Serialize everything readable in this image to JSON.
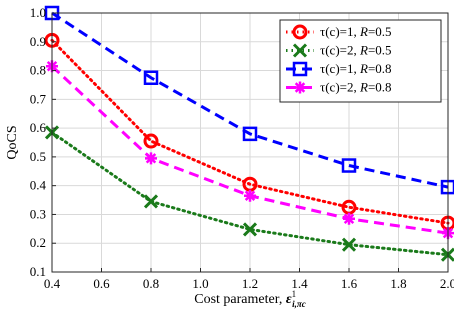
{
  "chart_data": {
    "type": "line",
    "xlabel": "Cost parameter, ",
    "xlabel_symbol": {
      "base": "ε",
      "sub": "i,πc",
      "sup": "1"
    },
    "ylabel": "QoCS",
    "xlim": [
      0.4,
      2.0
    ],
    "ylim": [
      0.1,
      1.0
    ],
    "xticks": [
      0.4,
      0.6,
      0.8,
      1.0,
      1.2,
      1.4,
      1.6,
      1.8,
      2.0
    ],
    "yticks": [
      0.1,
      0.2,
      0.3,
      0.4,
      0.5,
      0.6,
      0.7,
      0.8,
      0.9,
      1.0
    ],
    "xtick_labels": [
      "0.4",
      "0.6",
      "0.8",
      "1.0",
      "1.2",
      "1.4",
      "1.6",
      "1.8",
      "2.0"
    ],
    "ytick_labels": [
      "0.1",
      "0.2",
      "0.3",
      "0.4",
      "0.5",
      "0.6",
      "0.7",
      "0.8",
      "0.9",
      "1.0"
    ],
    "grid": true,
    "legend_position": "top-right",
    "series": [
      {
        "name": "τ(c)=1, R=0.5",
        "tau": "1",
        "R": "0.5",
        "color": "#ff0000",
        "marker": "circle",
        "dash": "dot",
        "x": [
          0.4,
          0.8,
          1.2,
          1.6,
          2.0
        ],
        "y": [
          0.905,
          0.555,
          0.405,
          0.325,
          0.27
        ]
      },
      {
        "name": "τ(c)=2, R=0.5",
        "tau": "2",
        "R": "0.5",
        "color": "#1a7a1a",
        "marker": "x",
        "dash": "dot",
        "x": [
          0.4,
          0.8,
          1.2,
          1.6,
          2.0
        ],
        "y": [
          0.585,
          0.345,
          0.248,
          0.195,
          0.16
        ]
      },
      {
        "name": "τ(c)=1, R=0.8",
        "tau": "1",
        "R": "0.8",
        "color": "#0000ff",
        "marker": "square",
        "dash": "dash",
        "x": [
          0.4,
          0.8,
          1.2,
          1.6,
          2.0
        ],
        "y": [
          1.0,
          0.775,
          0.58,
          0.47,
          0.395
        ]
      },
      {
        "name": "τ(c)=2, R=0.8",
        "tau": "2",
        "R": "0.8",
        "color": "#ff00ff",
        "marker": "asterisk",
        "dash": "dash",
        "x": [
          0.4,
          0.8,
          1.2,
          1.6,
          2.0
        ],
        "y": [
          0.815,
          0.495,
          0.365,
          0.285,
          0.235
        ]
      }
    ]
  }
}
